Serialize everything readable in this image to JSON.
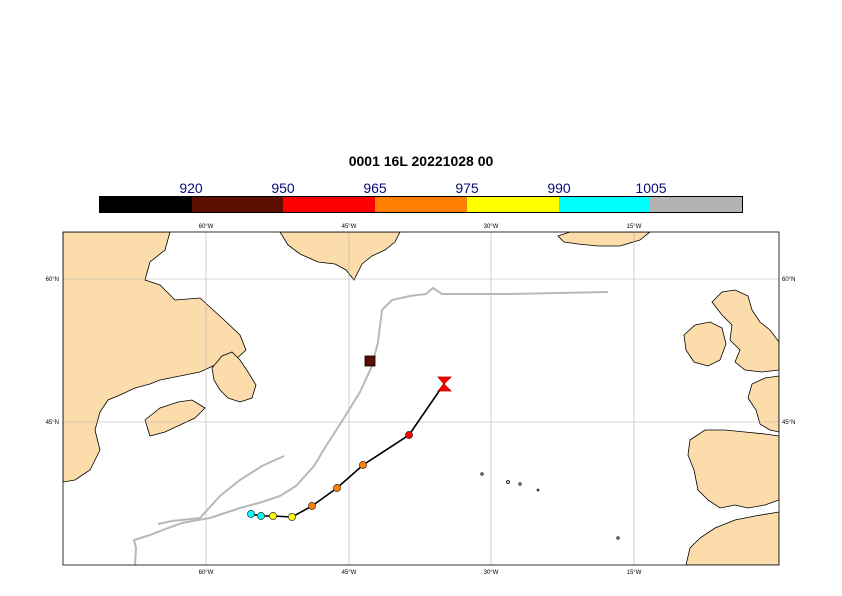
{
  "title": "0001 16L 20221028 00",
  "colorbar": {
    "segments": [
      {
        "color": "#000000"
      },
      {
        "color": "#5c0f00"
      },
      {
        "color": "#ff0000"
      },
      {
        "color": "#ff8000"
      },
      {
        "color": "#ffff00"
      },
      {
        "color": "#00ffff"
      },
      {
        "color": "#b3b3b3"
      }
    ],
    "ticks": [
      "920",
      "950",
      "965",
      "975",
      "990",
      "1005"
    ]
  },
  "axes": {
    "lon_labels": [
      "60°W",
      "45°W",
      "30°W",
      "15°W"
    ],
    "lat_labels": [
      "60°N",
      "45°N"
    ]
  },
  "colors": {
    "land": "#fbdcaa",
    "ocean": "#ffffff",
    "grid": "#b0b0b0",
    "observed_track": "#b8b8b8",
    "forecast_track": "#000000"
  },
  "forecast_points": [
    {
      "pressure_color": "#00ffff"
    },
    {
      "pressure_color": "#00ffff"
    },
    {
      "pressure_color": "#ffff00"
    },
    {
      "pressure_color": "#ffff00"
    },
    {
      "pressure_color": "#ff8000"
    },
    {
      "pressure_color": "#ff8000"
    },
    {
      "pressure_color": "#ff8000"
    },
    {
      "pressure_color": "#ff0000"
    },
    {
      "pressure_color": "#ff0000",
      "marker": "end"
    }
  ],
  "other_marker": {
    "pressure_color": "#5c0f00",
    "marker": "square"
  }
}
